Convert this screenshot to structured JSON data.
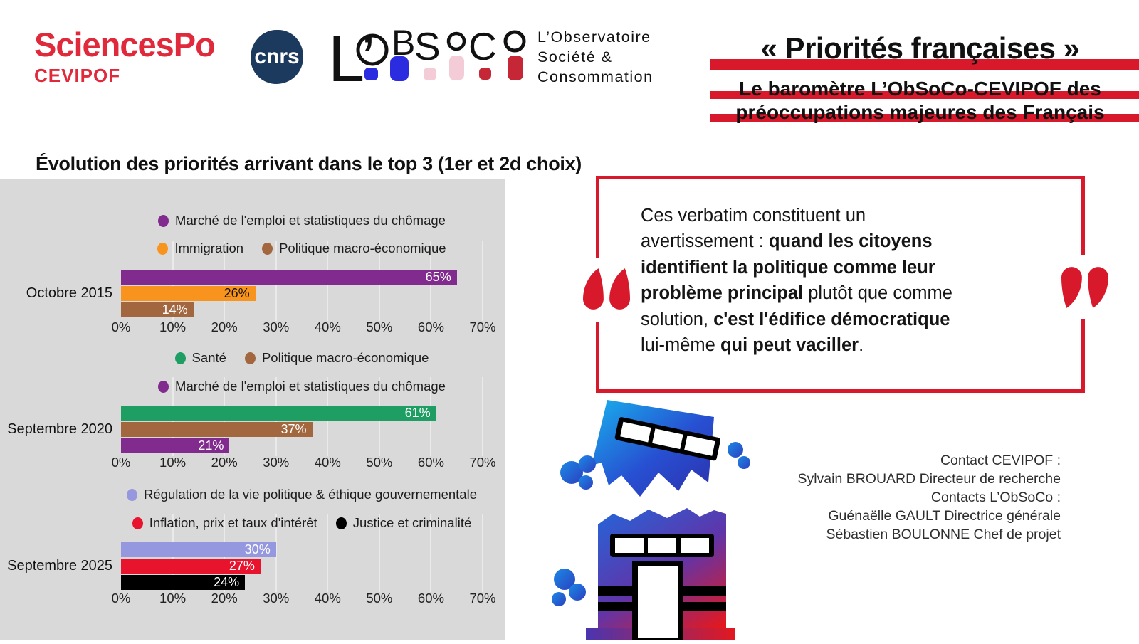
{
  "colors": {
    "brand_red": "#d8192c",
    "sciencespo_red": "#e0293a",
    "cnrs_navy": "#1c3a5e",
    "panel_gray": "#d9d9d9",
    "obsoco_blue": "#2b2be0",
    "obsoco_pink": "#f3ccd8",
    "obsoco_red": "#c62737"
  },
  "header": {
    "sciencespo_wordmark": "SciencesPo",
    "sciencespo_unit": "CEVIPOF",
    "cnrs_label": "cnrs",
    "obsoco_letters": {
      "l": "L’",
      "b": "B",
      "s": "S",
      "c": "C"
    },
    "obsoco_tagline": [
      "L’Observatoire",
      "Société &",
      "Consommation"
    ],
    "title": "« Priorités françaises »",
    "subtitle_lines": [
      "Le baromètre L’ObSoCo-CEVIPOF des",
      "préoccupations majeures des Français"
    ]
  },
  "chart_data": {
    "type": "bar",
    "title": "Évolution des priorités arrivant dans le top 3 (1er et 2d choix)",
    "xlabel": "",
    "ylabel": "",
    "xlim": [
      0,
      70
    ],
    "unit": "%",
    "grid": true,
    "x_ticks": [
      "0%",
      "10%",
      "20%",
      "30%",
      "40%",
      "50%",
      "60%",
      "70%"
    ],
    "groups": [
      {
        "period": "Octobre 2015",
        "legend_rows": [
          [
            {
              "label": "Marché de l'emploi et statistiques du chômage",
              "color": "#822b8f"
            }
          ],
          [
            {
              "label": "Immigration",
              "color": "#f8941e"
            },
            {
              "label": "Politique macro-économique",
              "color": "#a2673e"
            }
          ]
        ],
        "bars": [
          {
            "name": "Marché de l'emploi et statistiques du chômage",
            "value": 65,
            "display": "65%",
            "color": "#822b8f",
            "text_color": "#ffffff"
          },
          {
            "name": "Immigration",
            "value": 26,
            "display": "26%",
            "color": "#f8941e",
            "text_color": "#111111"
          },
          {
            "name": "Politique macro-économique",
            "value": 14,
            "display": "14%",
            "color": "#a2673e",
            "text_color": "#ffffff"
          }
        ]
      },
      {
        "period": "Septembre 2020",
        "legend_rows": [
          [
            {
              "label": "Santé",
              "color": "#1e9e62"
            },
            {
              "label": "Politique macro-économique",
              "color": "#a2673e"
            }
          ],
          [
            {
              "label": "Marché de l'emploi et statistiques du chômage",
              "color": "#822b8f"
            }
          ]
        ],
        "bars": [
          {
            "name": "Santé",
            "value": 61,
            "display": "61%",
            "color": "#1e9e62",
            "text_color": "#ffffff"
          },
          {
            "name": "Politique macro-économique",
            "value": 37,
            "display": "37%",
            "color": "#a2673e",
            "text_color": "#ffffff"
          },
          {
            "name": "Marché de l'emploi et statistiques du chômage",
            "value": 21,
            "display": "21%",
            "color": "#822b8f",
            "text_color": "#ffffff"
          }
        ]
      },
      {
        "period": "Septembre 2025",
        "legend_rows": [
          [
            {
              "label": "Régulation de la vie politique & éthique gouvernementale",
              "color": "#9598de"
            }
          ],
          [
            {
              "label": "Inflation, prix et taux d'intérêt",
              "color": "#e8132c"
            },
            {
              "label": "Justice et criminalité",
              "color": "#000000"
            }
          ]
        ],
        "bars": [
          {
            "name": "Régulation de la vie politique & éthique gouvernementale",
            "value": 30,
            "display": "30%",
            "color": "#9598de",
            "text_color": "#ffffff"
          },
          {
            "name": "Inflation, prix et taux d'intérêt",
            "value": 27,
            "display": "27%",
            "color": "#e8132c",
            "text_color": "#ffffff"
          },
          {
            "name": "Justice et criminalité",
            "value": 24,
            "display": "24%",
            "color": "#000000",
            "text_color": "#ffffff"
          }
        ]
      }
    ]
  },
  "quote": {
    "segments": [
      {
        "text": "Ces verbatim constituent un\navertissement : ",
        "bold": false
      },
      {
        "text": "quand les citoyens\nidentifient la politique comme leur\nproblème principal",
        "bold": true
      },
      {
        "text": " plutôt que comme\nsolution, ",
        "bold": false
      },
      {
        "text": "c'est l'édifice démocratique",
        "bold": true
      },
      {
        "text": "\nlui-même ",
        "bold": false
      },
      {
        "text": "qui peut vaciller",
        "bold": true
      },
      {
        "text": ".",
        "bold": false
      }
    ]
  },
  "contacts": {
    "lines": [
      "Contact CEVIPOF :",
      "Sylvain BROUARD Directeur de recherche",
      "Contacts L’ObSoCo :",
      "Guénaëlle GAULT Directrice générale",
      "Sébastien BOULONNE Chef de projet"
    ]
  }
}
